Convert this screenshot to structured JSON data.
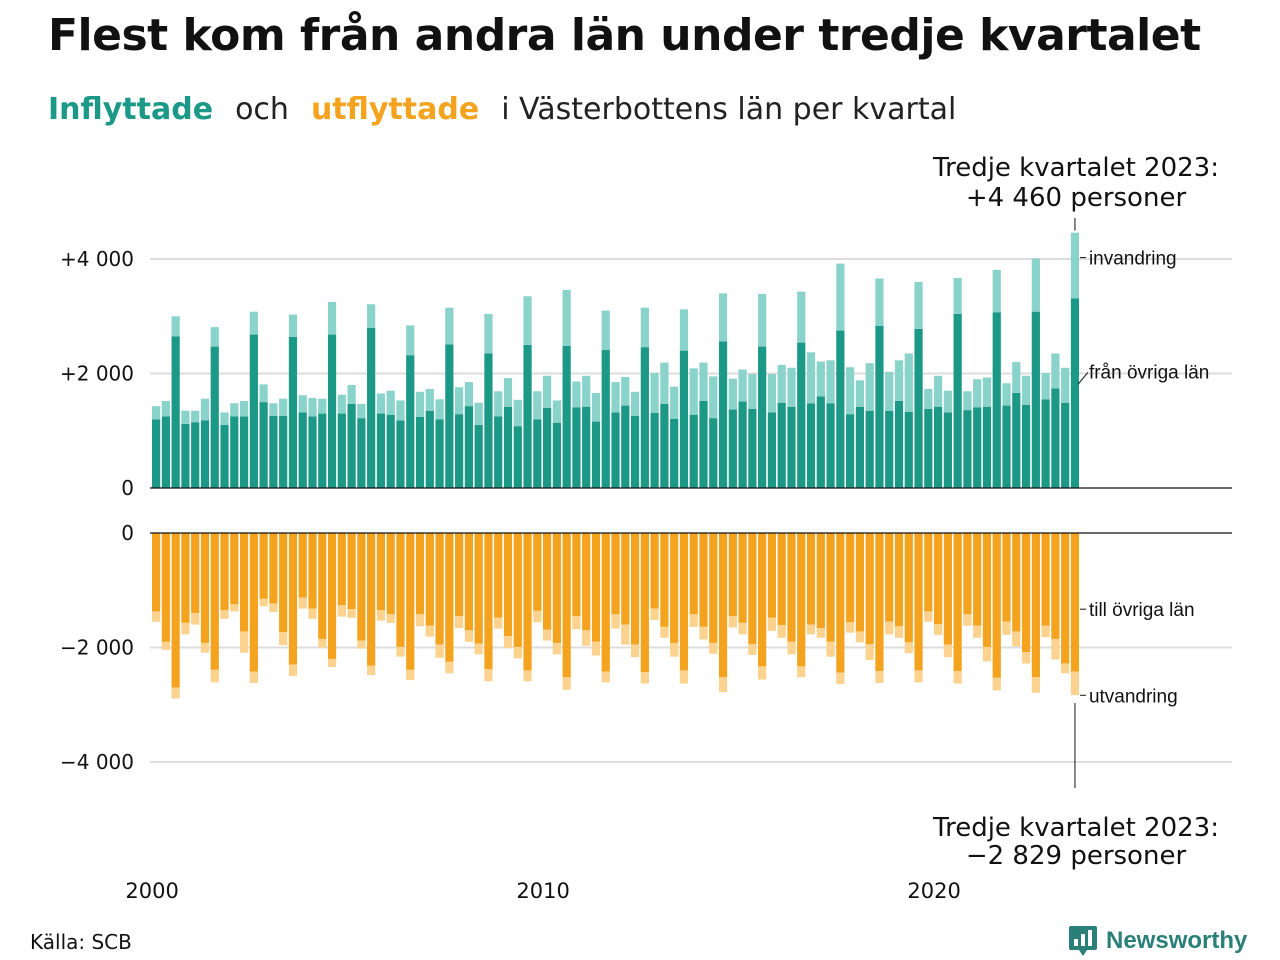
{
  "header": {
    "title": "Flest kom från andra län under tredje kvartalet",
    "subtitle_in": "Inflyttade",
    "subtitle_och": "och",
    "subtitle_out": "utflyttade",
    "subtitle_rest": "i Västerbottens  län  per  kvartal"
  },
  "footer": {
    "source": "Källa: SCB",
    "brand": "Newsworthy"
  },
  "colors": {
    "in_domestic": "#1b9886",
    "in_immigration": "#8ad3cb",
    "out_domestic": "#f4a31e",
    "out_emigration": "#fbd28e",
    "grid": "#dddddd"
  },
  "chart_data": {
    "type": "bar",
    "layout": "diverging-stacked",
    "x_start_year": 2000,
    "x_start_quarter": 1,
    "x_ticks": [
      2000,
      2010,
      2020
    ],
    "y_ticks_top": [
      "+4 000",
      "+2 000",
      "0"
    ],
    "y_ticks_bottom": [
      "0",
      "−2 000",
      "−4 000"
    ],
    "ylim_top": [
      0,
      4500
    ],
    "ylim_bottom": [
      -4500,
      0
    ],
    "series": [
      {
        "name": "från övriga län",
        "values": [
          1200,
          1250,
          2650,
          1120,
          1150,
          1180,
          2470,
          1100,
          1250,
          1250,
          2680,
          1500,
          1260,
          1260,
          2640,
          1320,
          1250,
          1300,
          2680,
          1300,
          1470,
          1220,
          2800,
          1300,
          1280,
          1180,
          2320,
          1240,
          1350,
          1200,
          2510,
          1290,
          1430,
          1100,
          2350,
          1250,
          1420,
          1080,
          2500,
          1200,
          1400,
          1140,
          2480,
          1410,
          1420,
          1160,
          2410,
          1320,
          1440,
          1260,
          2460,
          1310,
          1470,
          1210,
          2400,
          1280,
          1520,
          1220,
          2560,
          1370,
          1510,
          1380,
          2470,
          1320,
          1490,
          1420,
          2540,
          1480,
          1600,
          1480,
          2750,
          1290,
          1420,
          1350,
          2830,
          1350,
          1520,
          1330,
          2780,
          1380,
          1420,
          1320,
          3040,
          1360,
          1410,
          1420,
          3070,
          1440,
          1660,
          1450,
          3080,
          1550,
          1740,
          1490,
          3310
        ]
      },
      {
        "name": "invandring",
        "values": [
          230,
          270,
          350,
          230,
          200,
          380,
          340,
          220,
          230,
          270,
          400,
          310,
          220,
          300,
          390,
          300,
          320,
          260,
          570,
          330,
          330,
          250,
          410,
          350,
          420,
          350,
          520,
          440,
          380,
          350,
          640,
          470,
          420,
          390,
          690,
          440,
          500,
          460,
          850,
          490,
          560,
          390,
          980,
          450,
          540,
          500,
          690,
          530,
          500,
          420,
          690,
          700,
          720,
          560,
          720,
          810,
          670,
          730,
          840,
          540,
          560,
          610,
          920,
          670,
          660,
          680,
          890,
          890,
          610,
          750,
          1170,
          820,
          460,
          830,
          830,
          680,
          710,
          1020,
          820,
          350,
          540,
          380,
          630,
          330,
          490,
          510,
          740,
          390,
          540,
          510,
          930,
          460,
          610,
          610,
          1150
        ]
      },
      {
        "name": "till övriga län",
        "values": [
          -1370,
          -1900,
          -2700,
          -1570,
          -1400,
          -1920,
          -2390,
          -1350,
          -1240,
          -1720,
          -2420,
          -1150,
          -1230,
          -1730,
          -2300,
          -1130,
          -1320,
          -1850,
          -2200,
          -1260,
          -1330,
          -1880,
          -2320,
          -1350,
          -1420,
          -1990,
          -2390,
          -1420,
          -1620,
          -1950,
          -2250,
          -1450,
          -1700,
          -1930,
          -2380,
          -1480,
          -1800,
          -1990,
          -2400,
          -1360,
          -1690,
          -1920,
          -2520,
          -1450,
          -1700,
          -1900,
          -2420,
          -1420,
          -1600,
          -1950,
          -2430,
          -1320,
          -1640,
          -1920,
          -2400,
          -1420,
          -1640,
          -1920,
          -2520,
          -1450,
          -1570,
          -1940,
          -2330,
          -1480,
          -1610,
          -1900,
          -2330,
          -1600,
          -1660,
          -1900,
          -2440,
          -1560,
          -1720,
          -1940,
          -2410,
          -1550,
          -1630,
          -1910,
          -2400,
          -1370,
          -1590,
          -1950,
          -2410,
          -1420,
          -1620,
          -1990,
          -2530,
          -1550,
          -1720,
          -2080,
          -2520,
          -1620,
          -1850,
          -2280,
          -2420
        ]
      },
      {
        "name": "utvandring",
        "values": [
          -180,
          -140,
          -190,
          -200,
          -200,
          -170,
          -220,
          -150,
          -130,
          -370,
          -200,
          -130,
          -150,
          -230,
          -200,
          -190,
          -180,
          -150,
          -140,
          -200,
          -150,
          -140,
          -160,
          -180,
          -150,
          -170,
          -180,
          -210,
          -190,
          -230,
          -200,
          -210,
          -200,
          -190,
          -210,
          -190,
          -210,
          -200,
          -190,
          -200,
          -190,
          -200,
          -220,
          -230,
          -270,
          -240,
          -190,
          -250,
          -350,
          -220,
          -200,
          -200,
          -190,
          -240,
          -230,
          -220,
          -220,
          -190,
          -260,
          -200,
          -200,
          -190,
          -230,
          -230,
          -220,
          -220,
          -190,
          -170,
          -170,
          -260,
          -200,
          -180,
          -190,
          -280,
          -210,
          -220,
          -200,
          -190,
          -210,
          -180,
          -190,
          -220,
          -220,
          -200,
          -210,
          -250,
          -220,
          -230,
          -260,
          -200,
          -270,
          -200,
          -360,
          -170,
          -410
        ]
      }
    ],
    "labels_right": {
      "invandring": "invandring",
      "fran_ovriga": "från övriga län",
      "till_ovriga": "till övriga län",
      "utvandring": "utvandring"
    },
    "annotation_top": {
      "line1": "Tredje kvartalet 2023:",
      "line2": "+4 460 personer"
    },
    "annotation_bottom": {
      "line1": "Tredje kvartalet 2023:",
      "line2": "−2 829 personer"
    }
  }
}
